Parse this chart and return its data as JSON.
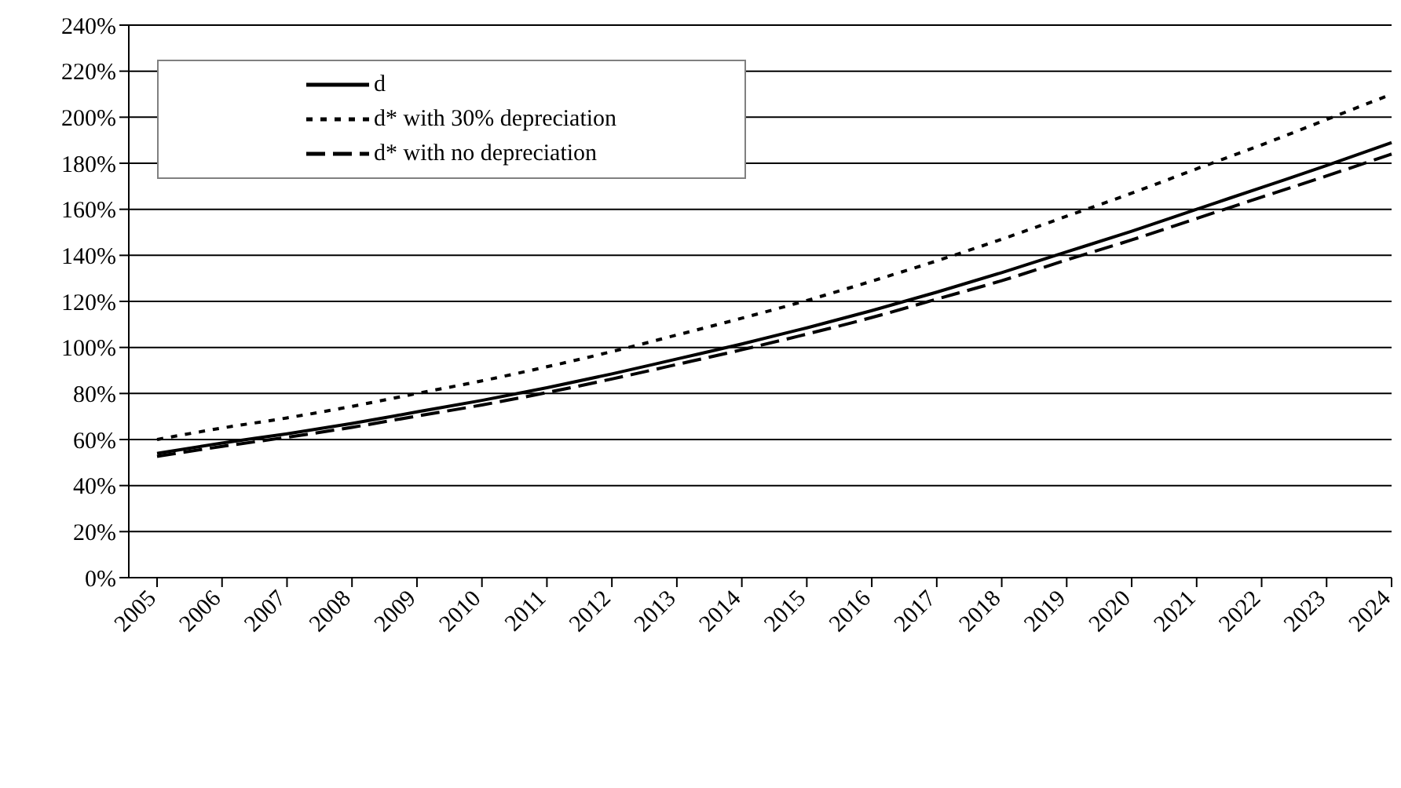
{
  "chart_data": {
    "type": "line",
    "categories": [
      "2005",
      "2006",
      "2007",
      "2008",
      "2009",
      "2010",
      "2011",
      "2012",
      "2013",
      "2014",
      "2015",
      "2016",
      "2017",
      "2018",
      "2019",
      "2020",
      "2021",
      "2022",
      "2023",
      "2024"
    ],
    "series": [
      {
        "name": "d",
        "color": "#000000",
        "line_style": "solid",
        "values": [
          54,
          58.5,
          62.5,
          67,
          72,
          77,
          82.5,
          88.5,
          95,
          101.5,
          108.5,
          116,
          124,
          132.5,
          141.5,
          150.5,
          160,
          169.5,
          179,
          189
        ]
      },
      {
        "name": "d* with 30% depreciation",
        "color": "#000000",
        "line_style": "dotted",
        "values": [
          60,
          65,
          69.4,
          74.4,
          80,
          85.5,
          91.6,
          98.2,
          105.4,
          112.7,
          120.4,
          128.8,
          137.6,
          147,
          157,
          167,
          177.6,
          188,
          199,
          210
        ]
      },
      {
        "name": "d* with no depreciation",
        "color": "#000000",
        "line_style": "dashed",
        "values": [
          52.7,
          57,
          61,
          65.3,
          70.2,
          75,
          80.4,
          86.3,
          92.6,
          99,
          105.8,
          113,
          121,
          129,
          138,
          146.7,
          156,
          165.3,
          174.5,
          184
        ]
      }
    ],
    "ylim": [
      0,
      240
    ],
    "yticks": [
      {
        "value": 0,
        "label": "0%"
      },
      {
        "value": 20,
        "label": "20%"
      },
      {
        "value": 40,
        "label": "40%"
      },
      {
        "value": 60,
        "label": "60%"
      },
      {
        "value": 80,
        "label": "80%"
      },
      {
        "value": 100,
        "label": "100%"
      },
      {
        "value": 120,
        "label": "120%"
      },
      {
        "value": 140,
        "label": "140%"
      },
      {
        "value": 160,
        "label": "160%"
      },
      {
        "value": 180,
        "label": "180%"
      },
      {
        "value": 200,
        "label": "200%"
      },
      {
        "value": 220,
        "label": "220%"
      },
      {
        "value": 240,
        "label": "240%"
      }
    ],
    "grid": "y",
    "legend": "top left",
    "marker": "none"
  }
}
